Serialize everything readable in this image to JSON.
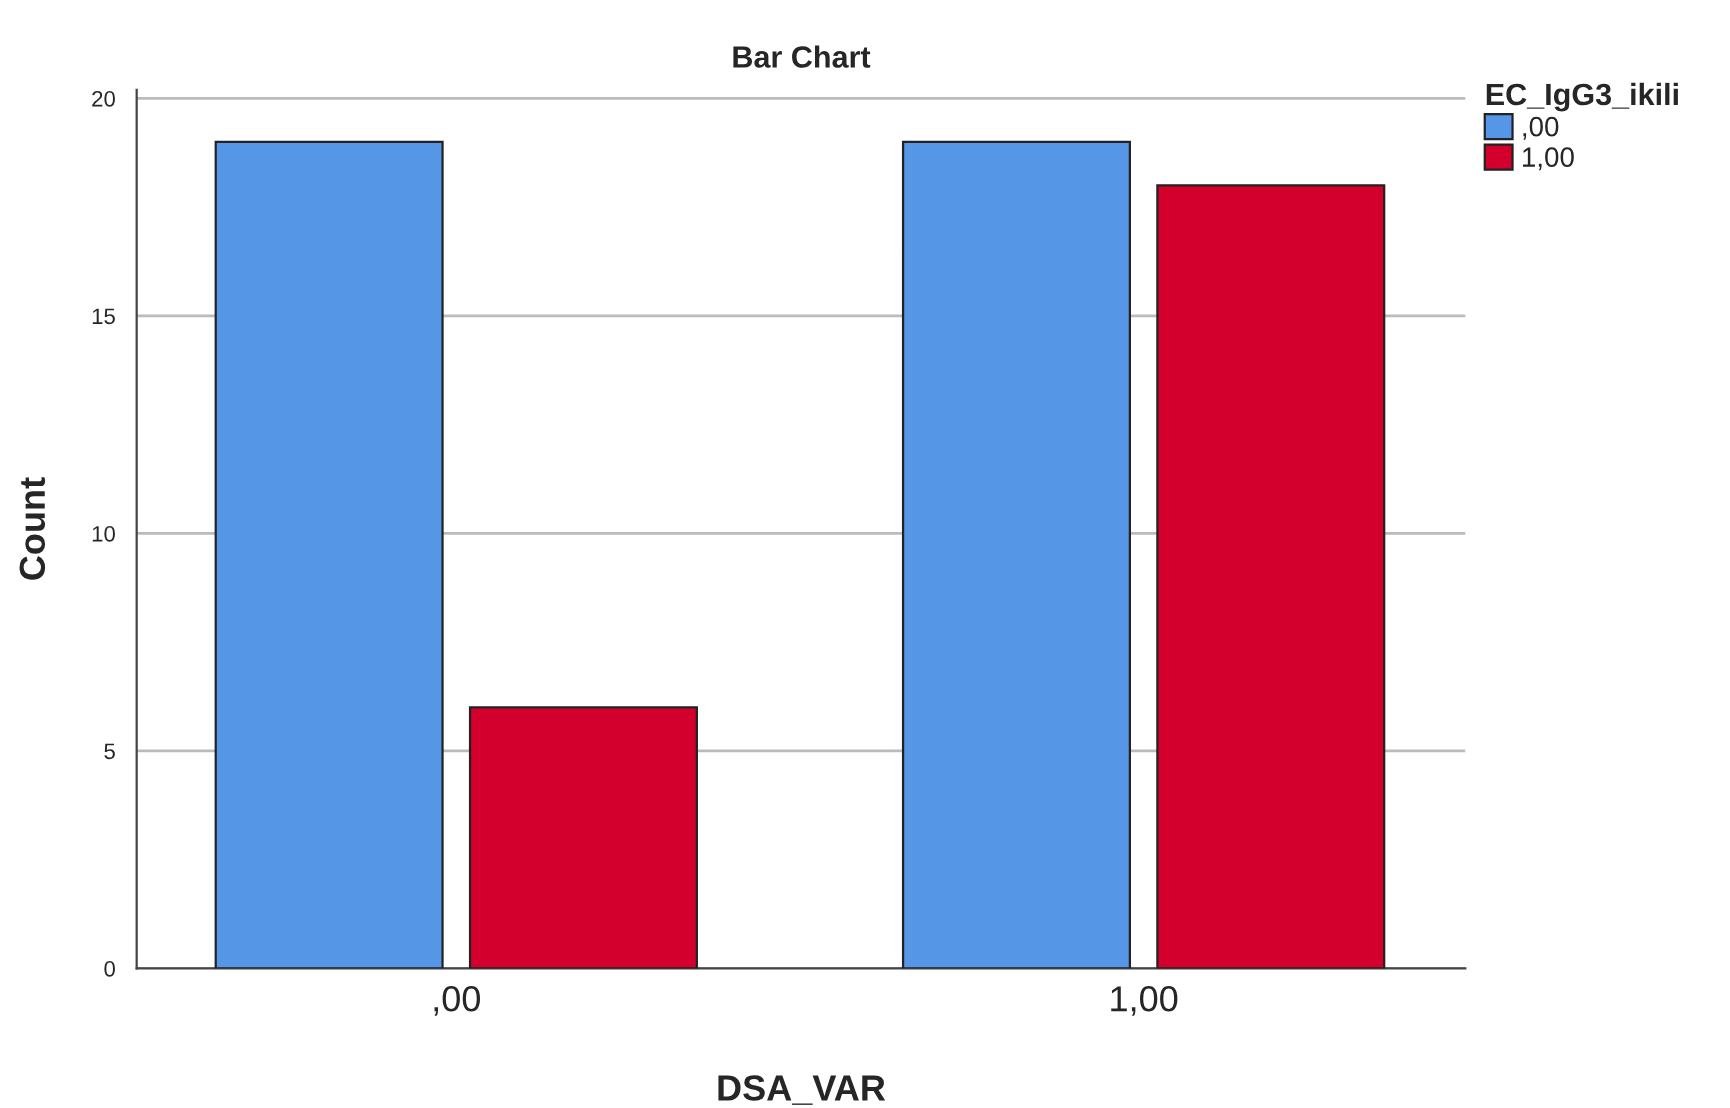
{
  "chart_data": {
    "type": "bar",
    "title": "Bar Chart",
    "xlabel": "DSA_VAR",
    "ylabel": "Count",
    "legend_title": "EC_IgG3_ikili",
    "categories": [
      ",00",
      "1,00"
    ],
    "series": [
      {
        "name": ",00",
        "color": "#5596e6",
        "values": [
          19,
          19
        ]
      },
      {
        "name": "1,00",
        "color": "#d3002d",
        "values": [
          6,
          18
        ]
      }
    ],
    "ylim": [
      0,
      20.2
    ],
    "yticks": [
      0,
      5,
      10,
      15,
      20
    ],
    "grid": "y",
    "legend": "top right"
  }
}
